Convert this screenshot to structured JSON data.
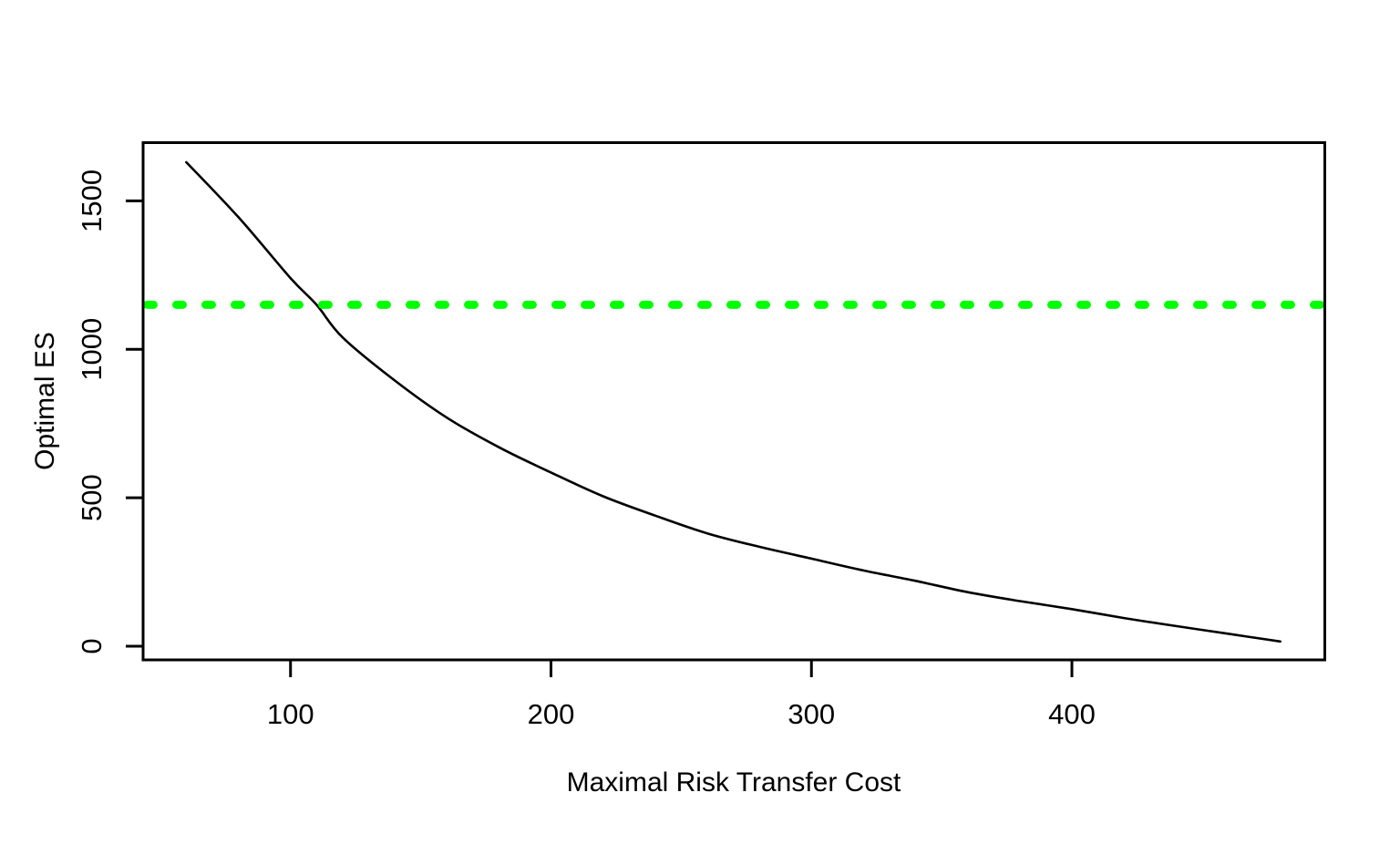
{
  "chart_data": {
    "type": "line",
    "title": "",
    "xlabel": "Maximal Risk Transfer Cost",
    "ylabel": "Optimal ES",
    "x_ticks": [
      100,
      200,
      300,
      400
    ],
    "y_ticks": [
      0,
      500,
      1000,
      1500
    ],
    "xlim": [
      43.4,
      497.1
    ],
    "ylim": [
      -46,
      1696
    ],
    "grid": false,
    "legend": "none",
    "colors": {
      "curve": "#000000",
      "reference_line": "#00FF00",
      "axis": "#000000",
      "background": "#FFFFFF"
    },
    "series": [
      {
        "name": "optimal-es-vs-max-risk-transfer-cost",
        "style": "solid",
        "color": "#000000",
        "points": [
          [
            60,
            1630
          ],
          [
            80,
            1445
          ],
          [
            100,
            1240
          ],
          [
            110,
            1150
          ],
          [
            120,
            1040
          ],
          [
            140,
            895
          ],
          [
            160,
            770
          ],
          [
            180,
            670
          ],
          [
            200,
            585
          ],
          [
            220,
            505
          ],
          [
            240,
            440
          ],
          [
            260,
            380
          ],
          [
            280,
            335
          ],
          [
            300,
            295
          ],
          [
            320,
            255
          ],
          [
            340,
            220
          ],
          [
            360,
            182
          ],
          [
            380,
            152
          ],
          [
            400,
            125
          ],
          [
            420,
            95
          ],
          [
            440,
            68
          ],
          [
            460,
            42
          ],
          [
            480,
            16
          ]
        ]
      }
    ],
    "reference_line": {
      "name": "horizontal-dashed-reference",
      "orientation": "horizontal",
      "value": 1150,
      "style": "dashed",
      "color": "#00FF00"
    }
  }
}
